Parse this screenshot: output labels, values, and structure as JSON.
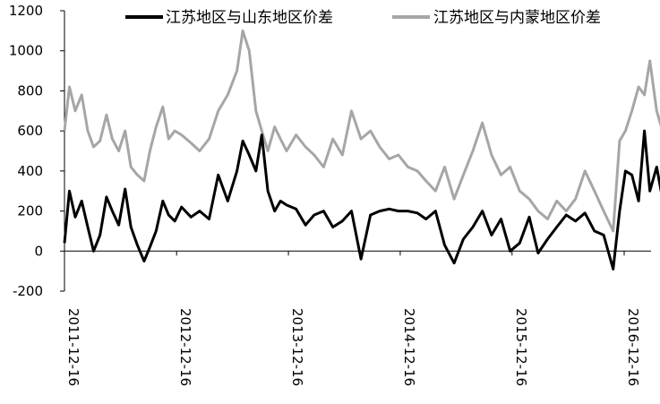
{
  "chart_data": {
    "type": "line",
    "title": "",
    "xlabel": "",
    "ylabel": "",
    "ylim": [
      -200,
      1200
    ],
    "y_ticks": [
      "-200",
      "0",
      "200",
      "400",
      "600",
      "800",
      "1000",
      "1200"
    ],
    "y_tick_values": [
      -200,
      0,
      200,
      400,
      600,
      800,
      1000,
      1200
    ],
    "x_ticks": [
      "2011-12-16",
      "2012-12-16",
      "2013-12-16",
      "2014-12-16",
      "2015-12-16",
      "2016-12-16"
    ],
    "xlim": [
      "2011-12-16",
      "2017-05-01"
    ],
    "legend_position": "top",
    "grid": false,
    "series": [
      {
        "name": "江苏地区与山东地区价差",
        "color": "#000000",
        "x": [
          "2011-12-16",
          "2012-01-01",
          "2012-01-20",
          "2012-02-10",
          "2012-03-01",
          "2012-03-20",
          "2012-04-10",
          "2012-05-01",
          "2012-05-20",
          "2012-06-10",
          "2012-07-01",
          "2012-07-20",
          "2012-08-10",
          "2012-09-01",
          "2012-09-20",
          "2012-10-10",
          "2012-11-01",
          "2012-11-20",
          "2012-12-10",
          "2013-01-01",
          "2013-02-01",
          "2013-03-01",
          "2013-04-01",
          "2013-05-01",
          "2013-06-01",
          "2013-07-01",
          "2013-07-20",
          "2013-08-10",
          "2013-09-01",
          "2013-09-20",
          "2013-10-10",
          "2013-11-01",
          "2013-11-20",
          "2013-12-10",
          "2014-01-10",
          "2014-02-10",
          "2014-03-10",
          "2014-04-10",
          "2014-05-10",
          "2014-06-10",
          "2014-07-10",
          "2014-08-10",
          "2014-09-10",
          "2014-10-10",
          "2014-11-10",
          "2014-12-10",
          "2015-01-10",
          "2015-02-10",
          "2015-03-10",
          "2015-04-10",
          "2015-05-10",
          "2015-06-10",
          "2015-07-10",
          "2015-08-10",
          "2015-09-10",
          "2015-10-10",
          "2015-11-10",
          "2015-12-10",
          "2016-01-10",
          "2016-02-10",
          "2016-03-10",
          "2016-04-10",
          "2016-05-10",
          "2016-06-10",
          "2016-07-10",
          "2016-08-10",
          "2016-09-10",
          "2016-10-10",
          "2016-11-10",
          "2016-12-01",
          "2016-12-20",
          "2017-01-10",
          "2017-02-01",
          "2017-02-20",
          "2017-03-10",
          "2017-04-01",
          "2017-04-20"
        ],
        "y": [
          40,
          300,
          170,
          250,
          120,
          0,
          80,
          270,
          200,
          130,
          310,
          120,
          30,
          -50,
          20,
          100,
          250,
          180,
          150,
          220,
          170,
          200,
          160,
          380,
          250,
          400,
          550,
          480,
          400,
          580,
          300,
          200,
          250,
          230,
          210,
          130,
          180,
          200,
          120,
          150,
          200,
          -40,
          180,
          200,
          210,
          200,
          200,
          190,
          160,
          200,
          30,
          -60,
          60,
          120,
          200,
          80,
          160,
          0,
          40,
          170,
          -10,
          60,
          120,
          180,
          150,
          190,
          100,
          80,
          -90,
          200,
          400,
          380,
          250,
          600,
          300,
          420,
          260
        ]
      },
      {
        "name": "江苏地区与内蒙地区价差",
        "color": "#a6a6a6",
        "x": [
          "2011-12-16",
          "2012-01-01",
          "2012-01-20",
          "2012-02-10",
          "2012-03-01",
          "2012-03-20",
          "2012-04-10",
          "2012-05-01",
          "2012-05-20",
          "2012-06-10",
          "2012-07-01",
          "2012-07-20",
          "2012-08-10",
          "2012-09-01",
          "2012-09-20",
          "2012-10-10",
          "2012-11-01",
          "2012-11-20",
          "2012-12-10",
          "2013-01-01",
          "2013-02-01",
          "2013-03-01",
          "2013-04-01",
          "2013-05-01",
          "2013-06-01",
          "2013-07-01",
          "2013-07-20",
          "2013-08-10",
          "2013-09-01",
          "2013-09-20",
          "2013-10-10",
          "2013-11-01",
          "2013-11-20",
          "2013-12-10",
          "2014-01-10",
          "2014-02-10",
          "2014-03-10",
          "2014-04-10",
          "2014-05-10",
          "2014-06-10",
          "2014-07-10",
          "2014-08-10",
          "2014-09-10",
          "2014-10-10",
          "2014-11-10",
          "2014-12-10",
          "2015-01-10",
          "2015-02-10",
          "2015-03-10",
          "2015-04-10",
          "2015-05-10",
          "2015-06-10",
          "2015-07-10",
          "2015-08-10",
          "2015-09-10",
          "2015-10-10",
          "2015-11-10",
          "2015-12-10",
          "2016-01-10",
          "2016-02-10",
          "2016-03-10",
          "2016-04-10",
          "2016-05-10",
          "2016-06-10",
          "2016-07-10",
          "2016-08-10",
          "2016-09-10",
          "2016-10-10",
          "2016-11-10",
          "2016-12-01",
          "2016-12-20",
          "2017-01-10",
          "2017-02-01",
          "2017-02-20",
          "2017-03-10",
          "2017-04-01",
          "2017-04-20"
        ],
        "y": [
          600,
          820,
          700,
          780,
          600,
          520,
          550,
          680,
          560,
          500,
          600,
          420,
          380,
          350,
          500,
          620,
          720,
          560,
          600,
          580,
          540,
          500,
          560,
          700,
          780,
          900,
          1100,
          1000,
          700,
          600,
          500,
          620,
          560,
          500,
          580,
          520,
          480,
          420,
          560,
          480,
          700,
          560,
          600,
          520,
          460,
          480,
          420,
          400,
          350,
          300,
          420,
          260,
          380,
          500,
          640,
          480,
          380,
          420,
          300,
          260,
          200,
          160,
          250,
          200,
          260,
          400,
          300,
          200,
          100,
          550,
          600,
          700,
          820,
          780,
          950,
          700,
          600
        ]
      }
    ]
  }
}
